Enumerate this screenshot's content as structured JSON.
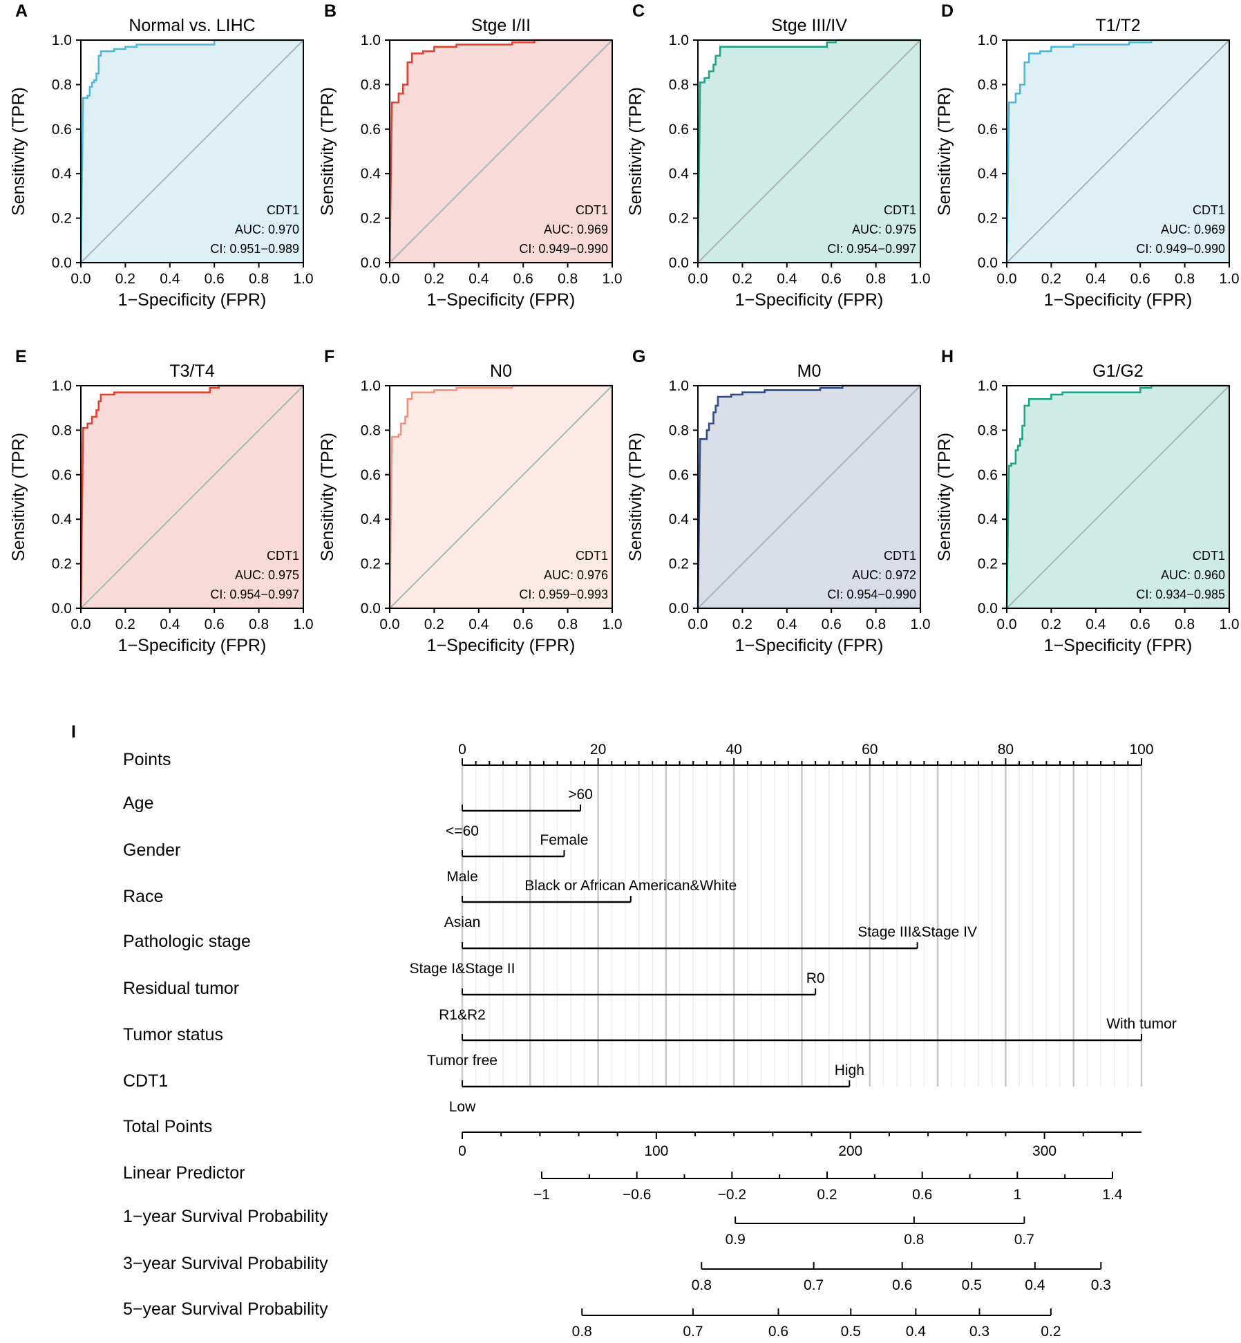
{
  "roc_panels": [
    {
      "letter": "A",
      "title": "Normal vs. LIHC",
      "colors": {
        "fill": "#dcf0f6",
        "line": "#4fb7d9"
      },
      "annotation": [
        "CDT1",
        "AUC: 0.970",
        "CI: 0.951−0.989"
      ],
      "curve": [
        [
          0,
          0
        ],
        [
          0.01,
          0.74
        ],
        [
          0.03,
          0.74
        ],
        [
          0.03,
          0.75
        ],
        [
          0.04,
          0.75
        ],
        [
          0.04,
          0.79
        ],
        [
          0.05,
          0.79
        ],
        [
          0.05,
          0.81
        ],
        [
          0.06,
          0.81
        ],
        [
          0.06,
          0.82
        ],
        [
          0.07,
          0.82
        ],
        [
          0.07,
          0.85
        ],
        [
          0.08,
          0.85
        ],
        [
          0.08,
          0.93
        ],
        [
          0.09,
          0.93
        ],
        [
          0.09,
          0.95
        ],
        [
          0.15,
          0.95
        ],
        [
          0.15,
          0.96
        ],
        [
          0.2,
          0.96
        ],
        [
          0.2,
          0.97
        ],
        [
          0.25,
          0.97
        ],
        [
          0.25,
          0.98
        ],
        [
          0.6,
          0.98
        ],
        [
          0.6,
          1.0
        ],
        [
          1,
          1
        ]
      ]
    },
    {
      "letter": "B",
      "title": "Stge I/II",
      "colors": {
        "fill": "#f8dbd8",
        "line": "#e2432f"
      },
      "annotation": [
        "CDT1",
        "AUC: 0.969",
        "CI: 0.949−0.990"
      ],
      "curve": [
        [
          0,
          0
        ],
        [
          0.01,
          0.72
        ],
        [
          0.04,
          0.72
        ],
        [
          0.04,
          0.76
        ],
        [
          0.06,
          0.76
        ],
        [
          0.06,
          0.8
        ],
        [
          0.08,
          0.8
        ],
        [
          0.08,
          0.9
        ],
        [
          0.1,
          0.9
        ],
        [
          0.1,
          0.94
        ],
        [
          0.15,
          0.94
        ],
        [
          0.15,
          0.95
        ],
        [
          0.2,
          0.95
        ],
        [
          0.2,
          0.97
        ],
        [
          0.3,
          0.97
        ],
        [
          0.3,
          0.98
        ],
        [
          0.55,
          0.98
        ],
        [
          0.55,
          0.99
        ],
        [
          0.65,
          0.99
        ],
        [
          0.65,
          1.0
        ],
        [
          1,
          1
        ]
      ]
    },
    {
      "letter": "C",
      "title": "Stge III/IV",
      "colors": {
        "fill": "#ceece5",
        "line": "#20a387"
      },
      "annotation": [
        "CDT1",
        "AUC: 0.975",
        "CI: 0.954−0.997"
      ],
      "curve": [
        [
          0,
          0
        ],
        [
          0.01,
          0.81
        ],
        [
          0.03,
          0.81
        ],
        [
          0.03,
          0.83
        ],
        [
          0.05,
          0.83
        ],
        [
          0.05,
          0.86
        ],
        [
          0.07,
          0.86
        ],
        [
          0.07,
          0.89
        ],
        [
          0.08,
          0.89
        ],
        [
          0.08,
          0.93
        ],
        [
          0.1,
          0.93
        ],
        [
          0.1,
          0.97
        ],
        [
          0.58,
          0.97
        ],
        [
          0.58,
          0.99
        ],
        [
          0.62,
          0.99
        ],
        [
          0.62,
          1.0
        ],
        [
          1,
          1
        ]
      ]
    },
    {
      "letter": "D",
      "title": "T1/T2",
      "colors": {
        "fill": "#dcf0f6",
        "line": "#4fb7d9"
      },
      "annotation": [
        "CDT1",
        "AUC: 0.969",
        "CI: 0.949−0.990"
      ],
      "curve": [
        [
          0,
          0
        ],
        [
          0.01,
          0.72
        ],
        [
          0.04,
          0.72
        ],
        [
          0.04,
          0.76
        ],
        [
          0.06,
          0.76
        ],
        [
          0.06,
          0.8
        ],
        [
          0.08,
          0.8
        ],
        [
          0.08,
          0.9
        ],
        [
          0.1,
          0.9
        ],
        [
          0.1,
          0.94
        ],
        [
          0.15,
          0.94
        ],
        [
          0.15,
          0.95
        ],
        [
          0.2,
          0.95
        ],
        [
          0.2,
          0.97
        ],
        [
          0.3,
          0.97
        ],
        [
          0.3,
          0.98
        ],
        [
          0.55,
          0.98
        ],
        [
          0.55,
          0.99
        ],
        [
          0.65,
          0.99
        ],
        [
          0.65,
          1.0
        ],
        [
          1,
          1
        ]
      ]
    },
    {
      "letter": "E",
      "title": "T3/T4",
      "colors": {
        "fill": "#f8dbd8",
        "line": "#e2432f"
      },
      "annotation": [
        "CDT1",
        "AUC: 0.975",
        "CI: 0.954−0.997"
      ],
      "curve": [
        [
          0,
          0
        ],
        [
          0.01,
          0.81
        ],
        [
          0.03,
          0.81
        ],
        [
          0.03,
          0.83
        ],
        [
          0.05,
          0.83
        ],
        [
          0.05,
          0.86
        ],
        [
          0.07,
          0.86
        ],
        [
          0.07,
          0.89
        ],
        [
          0.08,
          0.89
        ],
        [
          0.08,
          0.93
        ],
        [
          0.09,
          0.93
        ],
        [
          0.09,
          0.96
        ],
        [
          0.15,
          0.96
        ],
        [
          0.15,
          0.97
        ],
        [
          0.58,
          0.97
        ],
        [
          0.58,
          0.99
        ],
        [
          0.62,
          0.99
        ],
        [
          0.62,
          1.0
        ],
        [
          1,
          1
        ]
      ]
    },
    {
      "letter": "F",
      "title": "N0",
      "colors": {
        "fill": "#fdeae5",
        "line": "#f0937a"
      },
      "annotation": [
        "CDT1",
        "AUC: 0.976",
        "CI: 0.959−0.993"
      ],
      "curve": [
        [
          0,
          0
        ],
        [
          0.01,
          0.77
        ],
        [
          0.04,
          0.77
        ],
        [
          0.04,
          0.78
        ],
        [
          0.05,
          0.78
        ],
        [
          0.05,
          0.83
        ],
        [
          0.07,
          0.83
        ],
        [
          0.07,
          0.86
        ],
        [
          0.08,
          0.86
        ],
        [
          0.08,
          0.94
        ],
        [
          0.1,
          0.94
        ],
        [
          0.1,
          0.97
        ],
        [
          0.2,
          0.97
        ],
        [
          0.2,
          0.98
        ],
        [
          0.3,
          0.98
        ],
        [
          0.3,
          0.99
        ],
        [
          0.55,
          0.99
        ],
        [
          0.55,
          1.0
        ],
        [
          1,
          1
        ]
      ]
    },
    {
      "letter": "G",
      "title": "M0",
      "colors": {
        "fill": "#d9dde8",
        "line": "#2d4a8a"
      },
      "annotation": [
        "CDT1",
        "AUC: 0.972",
        "CI: 0.954−0.990"
      ],
      "curve": [
        [
          0,
          0
        ],
        [
          0.01,
          0.76
        ],
        [
          0.04,
          0.76
        ],
        [
          0.04,
          0.8
        ],
        [
          0.05,
          0.8
        ],
        [
          0.05,
          0.83
        ],
        [
          0.07,
          0.83
        ],
        [
          0.07,
          0.88
        ],
        [
          0.08,
          0.88
        ],
        [
          0.08,
          0.91
        ],
        [
          0.09,
          0.91
        ],
        [
          0.09,
          0.95
        ],
        [
          0.15,
          0.95
        ],
        [
          0.15,
          0.96
        ],
        [
          0.2,
          0.96
        ],
        [
          0.2,
          0.97
        ],
        [
          0.3,
          0.97
        ],
        [
          0.3,
          0.98
        ],
        [
          0.55,
          0.98
        ],
        [
          0.55,
          0.99
        ],
        [
          0.65,
          0.99
        ],
        [
          0.65,
          1.0
        ],
        [
          1,
          1
        ]
      ]
    },
    {
      "letter": "H",
      "title": "G1/G2",
      "colors": {
        "fill": "#ceece5",
        "line": "#20a387"
      },
      "annotation": [
        "CDT1",
        "AUC: 0.960",
        "CI: 0.934−0.985"
      ],
      "curve": [
        [
          0,
          0
        ],
        [
          0.01,
          0.64
        ],
        [
          0.02,
          0.64
        ],
        [
          0.02,
          0.65
        ],
        [
          0.04,
          0.65
        ],
        [
          0.04,
          0.71
        ],
        [
          0.05,
          0.71
        ],
        [
          0.05,
          0.73
        ],
        [
          0.06,
          0.73
        ],
        [
          0.06,
          0.76
        ],
        [
          0.07,
          0.76
        ],
        [
          0.07,
          0.82
        ],
        [
          0.08,
          0.82
        ],
        [
          0.08,
          0.91
        ],
        [
          0.1,
          0.91
        ],
        [
          0.1,
          0.94
        ],
        [
          0.2,
          0.94
        ],
        [
          0.2,
          0.96
        ],
        [
          0.25,
          0.96
        ],
        [
          0.25,
          0.97
        ],
        [
          0.6,
          0.97
        ],
        [
          0.6,
          0.99
        ],
        [
          0.65,
          0.99
        ],
        [
          0.65,
          1.0
        ],
        [
          1,
          1
        ]
      ]
    }
  ],
  "roc_axes": {
    "xlabel": "1−Specificity (FPR)",
    "ylabel": "Sensitivity (TPR)",
    "ticks": [
      0.0,
      0.2,
      0.4,
      0.6,
      0.8,
      1.0
    ],
    "tick_labels": [
      "0.0",
      "0.2",
      "0.4",
      "0.6",
      "0.8",
      "1.0"
    ],
    "diagonal_color": "#a8b4bb"
  },
  "nomogram": {
    "letter": "I",
    "rows": [
      {
        "label": "Points",
        "type": "scale",
        "ticks": [
          0,
          20,
          40,
          60,
          80,
          100
        ],
        "tick_labels": [
          "0",
          "20",
          "40",
          "60",
          "80",
          "100"
        ],
        "minor_step": 2
      },
      {
        "label": "Age",
        "type": "factor",
        "segment": [
          0,
          17.4
        ],
        "top_label": ">60",
        "top_at": 17.4,
        "bottom_label": "<=60",
        "bottom_at": 0
      },
      {
        "label": "Gender",
        "type": "factor",
        "segment": [
          0,
          15
        ],
        "top_label": "Female",
        "top_at": 15,
        "bottom_label": "Male",
        "bottom_at": 0
      },
      {
        "label": "Race",
        "type": "factor",
        "segment": [
          0,
          24.8
        ],
        "top_label": "Black or African American&White",
        "top_at": 24.8,
        "bottom_label": "Asian",
        "bottom_at": 0
      },
      {
        "label": "Pathologic stage",
        "type": "factor",
        "segment": [
          0,
          67
        ],
        "top_label": "Stage III&Stage IV",
        "top_at": 67,
        "bottom_label": "Stage I&Stage II",
        "bottom_at": 0
      },
      {
        "label": "Residual tumor",
        "type": "factor",
        "segment": [
          0,
          52
        ],
        "top_label": "R0",
        "top_at": 52,
        "bottom_label": "R1&R2",
        "bottom_at": 0
      },
      {
        "label": "Tumor status",
        "type": "factor",
        "segment": [
          0,
          100
        ],
        "top_label": "With tumor",
        "top_at": 100,
        "bottom_label": "Tumor free",
        "bottom_at": 0
      },
      {
        "label": "CDT1",
        "type": "factor",
        "segment": [
          0,
          57
        ],
        "top_label": "High",
        "top_at": 57,
        "bottom_label": "Low",
        "bottom_at": 0
      },
      {
        "label": "Total Points",
        "type": "scale",
        "ticks": [
          0,
          100,
          200,
          300
        ],
        "tick_labels": [
          "0",
          "100",
          "200",
          "300"
        ],
        "max": 350,
        "minor_step": 20
      },
      {
        "label": "Linear Predictor",
        "type": "scale",
        "range": [
          -1,
          1.4
        ],
        "ticks": [
          -1,
          -0.6,
          -0.2,
          0.2,
          0.6,
          1,
          1.4
        ],
        "tick_labels": [
          "−1",
          "−0.6",
          "−0.2",
          "0.2",
          "0.6",
          "1",
          "1.4"
        ],
        "minor_step": 0.2
      },
      {
        "label": "1−year Survival Probability",
        "type": "prob",
        "ticks": [
          0.9,
          0.8,
          0.7
        ],
        "tick_labels": [
          "0.9",
          "0.8",
          "0.7"
        ],
        "range_points": [
          140.7,
          289.6
        ],
        "tick_points": [
          140.7,
          232.8,
          289.6
        ]
      },
      {
        "label": "3−year Survival Probability",
        "type": "prob",
        "ticks": [
          0.8,
          0.7,
          0.6,
          0.5,
          0.4,
          0.3
        ],
        "tick_labels": [
          "0.8",
          "0.7",
          "0.6",
          "0.5",
          "0.4",
          "0.3"
        ],
        "range_points": [
          123.3,
          329.1
        ],
        "tick_points": [
          123.3,
          181.1,
          226.7,
          262.5,
          295.1,
          329.1
        ]
      },
      {
        "label": "5−year Survival Probability",
        "type": "prob",
        "ticks": [
          0.8,
          0.7,
          0.6,
          0.5,
          0.4,
          0.3,
          0.2
        ],
        "tick_labels": [
          "0.8",
          "0.7",
          "0.6",
          "0.5",
          "0.4",
          "0.3",
          "0.2"
        ],
        "range_points": [
          61.7,
          303.3
        ],
        "tick_points": [
          61.7,
          118.9,
          162.9,
          200.2,
          233.7,
          266.5,
          303.3
        ]
      }
    ]
  }
}
